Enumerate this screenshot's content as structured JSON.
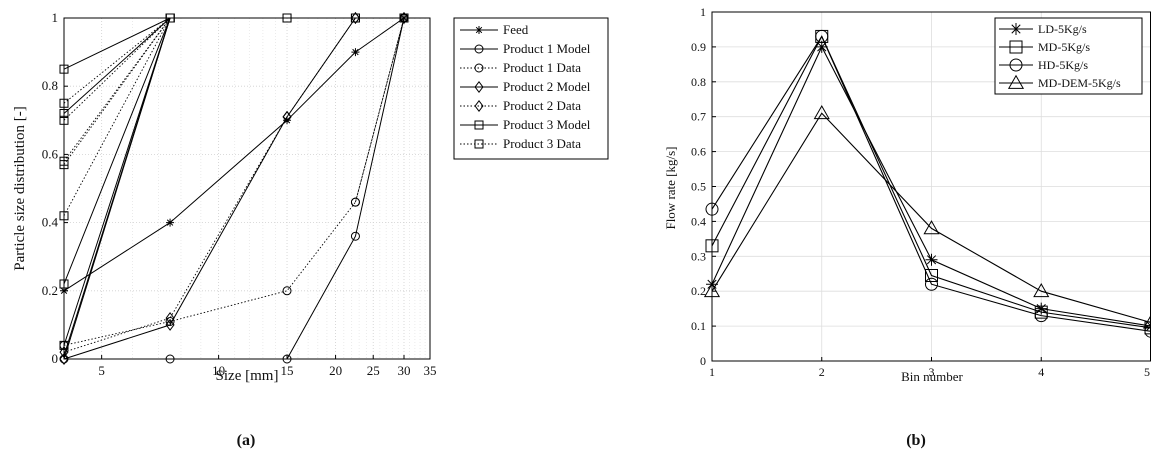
{
  "chart_data": [
    {
      "panel_label": "(a)",
      "type": "line",
      "x_scale": "log",
      "xlabel": "Size [mm]",
      "ylabel": "Particle size distribution [-]",
      "xlim": [
        4,
        35
      ],
      "ylim": [
        0,
        1
      ],
      "grid": true,
      "legend_position": "outside-right",
      "xticks": [
        5,
        10,
        15,
        20,
        25,
        30,
        35
      ],
      "yticks": [
        0,
        0.2,
        0.4,
        0.6,
        0.8,
        1
      ],
      "series": [
        {
          "name": "Feed",
          "marker": "star",
          "style": "solid",
          "x": [
            4,
            7.5,
            15,
            22.5,
            30
          ],
          "y": [
            0.2,
            0.4,
            0.7,
            0.9,
            1.0
          ]
        },
        {
          "name": "Product 1 Model",
          "marker": "circle",
          "style": "solid",
          "x": [
            4,
            7.5,
            15,
            22.5,
            30
          ],
          "y": [
            0.0,
            0.0,
            0.0,
            0.36,
            1.0
          ]
        },
        {
          "name": "Product 1 Data",
          "marker": "circle",
          "style": "dotted",
          "x": [
            4,
            7.5,
            15,
            22.5,
            30
          ],
          "y": [
            0.04,
            0.11,
            0.2,
            0.46,
            1.0
          ]
        },
        {
          "name": "Product 2 Model",
          "marker": "diamond",
          "style": "solid",
          "x": [
            4,
            7.5,
            15,
            22.5,
            30
          ],
          "y": [
            0.0,
            0.1,
            0.71,
            1.0,
            1.0
          ]
        },
        {
          "name": "Product 2 Data",
          "marker": "diamond",
          "style": "dotted",
          "x": [
            4,
            7.5,
            15,
            22.5,
            30
          ],
          "y": [
            0.02,
            0.12,
            0.71,
            1.0,
            1.0
          ]
        },
        {
          "name": "Product 3 Model",
          "marker": "square",
          "style": "solid",
          "x": [
            4,
            7.5,
            15,
            22.5,
            30
          ],
          "y": [
            0.22,
            1.0,
            1.0,
            1.0,
            1.0
          ]
        },
        {
          "name": "Product 3 Data",
          "marker": "square",
          "style": "dotted",
          "x": [
            4,
            7.5,
            15,
            22.5,
            30
          ],
          "y": [
            0.75,
            1.0,
            1.0,
            1.0,
            1.0
          ]
        }
      ],
      "extra_lines": [
        {
          "marker": "square",
          "style": "solid",
          "x": [
            4,
            7.5
          ],
          "y": [
            0.85,
            1.0
          ]
        },
        {
          "marker": "square",
          "style": "solid",
          "x": [
            4,
            7.5
          ],
          "y": [
            0.72,
            1.0
          ]
        },
        {
          "marker": "square",
          "style": "solid",
          "x": [
            4,
            7.5
          ],
          "y": [
            0.04,
            1.0
          ]
        },
        {
          "marker": "none",
          "style": "solid",
          "x": [
            4,
            7.5
          ],
          "y": [
            0.01,
            1.0
          ]
        },
        {
          "marker": "none",
          "style": "solid",
          "x": [
            4,
            7.5
          ],
          "y": [
            0.0,
            1.0
          ]
        },
        {
          "marker": "square",
          "style": "dotted",
          "x": [
            4,
            7.5
          ],
          "y": [
            0.7,
            1.0
          ]
        },
        {
          "marker": "square",
          "style": "dotted",
          "x": [
            4,
            7.5
          ],
          "y": [
            0.58,
            1.0
          ]
        },
        {
          "marker": "square",
          "style": "dotted",
          "x": [
            4,
            7.5
          ],
          "y": [
            0.57,
            1.0
          ]
        },
        {
          "marker": "square",
          "style": "dotted",
          "x": [
            4,
            7.5
          ],
          "y": [
            0.42,
            1.0
          ]
        },
        {
          "marker": "circle",
          "style": "dotted",
          "x": [
            22.5,
            30
          ],
          "y": [
            0.46,
            1.0
          ]
        }
      ]
    },
    {
      "panel_label": "(b)",
      "type": "line",
      "xlabel": "Bin number",
      "ylabel": "Flow rate [kg/s]",
      "xlim": [
        1,
        5
      ],
      "ylim": [
        0,
        1
      ],
      "grid": true,
      "legend_position": "top-right",
      "xticks": [
        1,
        2,
        3,
        4,
        5
      ],
      "yticks": [
        0,
        0.1,
        0.2,
        0.3,
        0.4,
        0.5,
        0.6,
        0.7,
        0.8,
        0.9,
        1
      ],
      "categories": [
        1,
        2,
        3,
        4,
        5
      ],
      "series": [
        {
          "name": "LD-5Kg/s",
          "marker": "star",
          "values": [
            0.22,
            0.9,
            0.29,
            0.15,
            0.1
          ]
        },
        {
          "name": "MD-5Kg/s",
          "marker": "square",
          "values": [
            0.33,
            0.93,
            0.245,
            0.14,
            0.095
          ]
        },
        {
          "name": "HD-5Kg/s",
          "marker": "circle",
          "values": [
            0.435,
            0.93,
            0.22,
            0.13,
            0.085
          ]
        },
        {
          "name": "MD-DEM-5Kg/s",
          "marker": "triangle",
          "values": [
            0.2,
            0.71,
            0.38,
            0.2,
            0.11
          ]
        }
      ]
    }
  ]
}
